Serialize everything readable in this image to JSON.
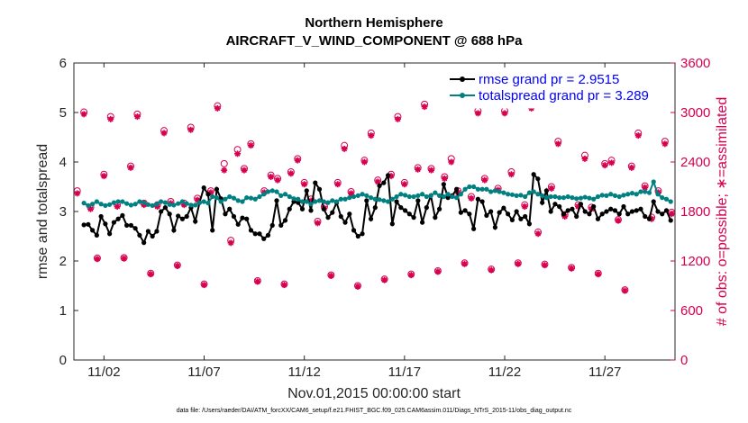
{
  "chart_data": {
    "type": "line",
    "title_line1": "Northern Hemisphere",
    "title_line2": "AIRCRAFT_V_WIND_COMPONENT @ 688 hPa",
    "xlabel": "Nov.01,2015 00:00:00 start",
    "ylabel_left": "rmse and totalspread",
    "ylabel_right": "# of obs: o=possible; ∗=assimilated",
    "footnote": "data file: /Users/raeder/DAI/ATM_forcXX/CAM6_setup/f.e21.FHIST_BGC.f09_025.CAM6assim.011/Diags_NTrS_2015-11/obs_diag_output.nc",
    "xlim": [
      0.5,
      30.5
    ],
    "ylim_left": [
      0,
      6
    ],
    "ylim_right": [
      0,
      3600
    ],
    "x_ticks": [
      {
        "value": 2,
        "label": "11/02"
      },
      {
        "value": 7,
        "label": "11/07"
      },
      {
        "value": 12,
        "label": "11/12"
      },
      {
        "value": 17,
        "label": "11/17"
      },
      {
        "value": 22,
        "label": "11/22"
      },
      {
        "value": 27,
        "label": "11/27"
      }
    ],
    "y_left_ticks": [
      {
        "value": 0,
        "label": "0"
      },
      {
        "value": 1,
        "label": "1"
      },
      {
        "value": 2,
        "label": "2"
      },
      {
        "value": 3,
        "label": "3"
      },
      {
        "value": 4,
        "label": "4"
      },
      {
        "value": 5,
        "label": "5"
      },
      {
        "value": 6,
        "label": "6"
      }
    ],
    "y_right_ticks": [
      {
        "value": 0,
        "label": "0"
      },
      {
        "value": 600,
        "label": "600"
      },
      {
        "value": 1200,
        "label": "1200"
      },
      {
        "value": 1800,
        "label": "1800"
      },
      {
        "value": 2400,
        "label": "2400"
      },
      {
        "value": 3000,
        "label": "3000"
      },
      {
        "value": 3600,
        "label": "3600"
      }
    ],
    "colors": {
      "rmse": "#000000",
      "spread": "#008080",
      "obs": "#d6004e",
      "legend_text": "#0000ff"
    },
    "legend_placement": "top-right",
    "series": [
      {
        "name": "rmse grand pr = 2.9515",
        "axis": "left",
        "values": [
          2.73,
          2.74,
          2.62,
          2.52,
          2.9,
          2.75,
          2.55,
          2.78,
          2.85,
          2.92,
          2.72,
          2.72,
          2.66,
          2.52,
          2.37,
          2.6,
          2.5,
          2.6,
          3.0,
          3.08,
          2.95,
          2.62,
          2.91,
          2.85,
          2.9,
          3.08,
          2.8,
          3.18,
          3.48,
          3.35,
          2.62,
          3.45,
          3.26,
          2.95,
          3.05,
          2.9,
          2.74,
          2.87,
          2.85,
          2.62,
          2.55,
          2.55,
          2.45,
          2.52,
          2.72,
          3.22,
          2.72,
          2.82,
          3.05,
          3.2,
          3.18,
          3.05,
          3.42,
          3.02,
          3.58,
          3.45,
          3.05,
          2.88,
          2.98,
          3.18,
          2.9,
          2.78,
          2.95,
          2.62,
          2.5,
          2.55,
          3.22,
          2.85,
          3.08,
          3.52,
          3.58,
          3.73,
          2.75,
          3.2,
          3.08,
          3.02,
          2.95,
          2.88,
          3.22,
          2.78,
          3.08,
          3.32,
          2.88,
          3.05,
          3.55,
          3.28,
          3.32,
          3.45,
          2.98,
          3.02,
          2.95,
          2.65,
          3.25,
          3.2,
          2.92,
          3.0,
          2.68,
          2.98,
          3.07,
          2.95,
          2.83,
          3.0,
          2.85,
          2.9,
          2.75,
          3.75,
          3.66,
          3.18,
          3.42,
          3.0,
          3.15,
          3.1,
          2.95,
          3.02,
          3.05,
          2.9,
          3.15,
          3.0,
          2.95,
          3.1,
          2.85,
          2.95,
          3.0,
          3.05,
          3.02,
          2.95,
          3.1,
          2.95,
          3.0,
          3.02,
          3.05,
          2.9,
          2.85,
          3.2,
          3.0,
          2.95,
          3.02,
          2.82
        ],
        "points_per_day": 4
      },
      {
        "name": "totalspread grand pr = 3.289",
        "axis": "left",
        "values": [
          3.17,
          3.12,
          3.15,
          3.2,
          3.15,
          3.12,
          3.14,
          3.18,
          3.2,
          3.2,
          3.16,
          3.13,
          3.15,
          3.2,
          3.18,
          3.14,
          3.12,
          3.15,
          3.2,
          3.18,
          3.14,
          3.13,
          3.16,
          3.2,
          3.16,
          3.13,
          3.13,
          3.18,
          3.2,
          3.17,
          3.3,
          3.28,
          3.2,
          3.25,
          3.3,
          3.27,
          3.22,
          3.2,
          3.28,
          3.27,
          3.25,
          3.3,
          3.35,
          3.4,
          3.42,
          3.4,
          3.32,
          3.35,
          3.3,
          3.26,
          3.25,
          3.2,
          3.2,
          3.15,
          3.2,
          3.22,
          3.2,
          3.18,
          3.22,
          3.2,
          3.25,
          3.25,
          3.28,
          3.3,
          3.32,
          3.35,
          3.32,
          3.28,
          3.25,
          3.24,
          3.22,
          3.2,
          3.25,
          3.3,
          3.35,
          3.33,
          3.3,
          3.3,
          3.32,
          3.35,
          3.3,
          3.32,
          3.38,
          3.32,
          3.3,
          3.35,
          3.3,
          3.28,
          3.35,
          3.45,
          3.5,
          3.5,
          3.45,
          3.45,
          3.45,
          3.4,
          3.42,
          3.4,
          3.38,
          3.35,
          3.34,
          3.32,
          3.33,
          3.3,
          3.38,
          3.4,
          3.35,
          3.32,
          3.28,
          3.3,
          3.3,
          3.28,
          3.28,
          3.3,
          3.28,
          3.26,
          3.27,
          3.29,
          3.27,
          3.25,
          3.3,
          3.33,
          3.32,
          3.35,
          3.32,
          3.3,
          3.33,
          3.35,
          3.37,
          3.35,
          3.4,
          3.4,
          3.38,
          3.6,
          3.35,
          3.28,
          3.25,
          3.2
        ],
        "points_per_day": 4
      }
    ],
    "obs_possible": [
      2050,
      3005,
      1850,
      1235,
      2250,
      2950,
      1880,
      1240,
      2350,
      2980,
      1900,
      1050,
      1880,
      2780,
      1920,
      1150,
      1900,
      2820,
      1960,
      920,
      2050,
      3080,
      2380,
      1450,
      2550,
      2320,
      2620,
      960,
      2050,
      2240,
      2200,
      920,
      2280,
      2440,
      2150,
      1950,
      1680,
      1860,
      1030,
      2150,
      2600,
      2040,
      900,
      2420,
      2750,
      2180,
      980,
      2250,
      2950,
      2150,
      1040,
      2330,
      3100,
      2320,
      1080,
      2220,
      2440,
      2050,
      1175,
      1980,
      3020,
      2200,
      1100,
      2080,
      3020,
      2280,
      1175,
      1880,
      3080,
      1550,
      1160,
      2100,
      2650,
      1760,
      1120,
      1880,
      2480,
      1850,
      1050,
      2380,
      2420,
      1700,
      850,
      2350,
      2750,
      2110,
      1730,
      2050,
      2650,
      1790
    ],
    "obs_assimilated": [
      2020,
      2980,
      1830,
      1225,
      2230,
      2920,
      1860,
      1230,
      2330,
      2950,
      1880,
      1040,
      1860,
      2750,
      1900,
      1140,
      1880,
      2790,
      1940,
      910,
      2030,
      3050,
      2300,
      1420,
      2500,
      2300,
      2600,
      950,
      2030,
      2220,
      2180,
      910,
      2260,
      2420,
      2130,
      1930,
      1660,
      1840,
      1020,
      2130,
      2560,
      2020,
      890,
      2400,
      2720,
      2160,
      970,
      2230,
      2920,
      2130,
      1030,
      2310,
      3070,
      2300,
      1070,
      2200,
      2400,
      2030,
      1165,
      1960,
      2990,
      2180,
      1090,
      2060,
      2990,
      2250,
      1165,
      1860,
      3050,
      1530,
      1150,
      2080,
      2620,
      1740,
      1110,
      1860,
      2440,
      1830,
      1040,
      2360,
      2390,
      1690,
      840,
      2330,
      2720,
      2090,
      1710,
      2030,
      2620,
      1770
    ]
  }
}
